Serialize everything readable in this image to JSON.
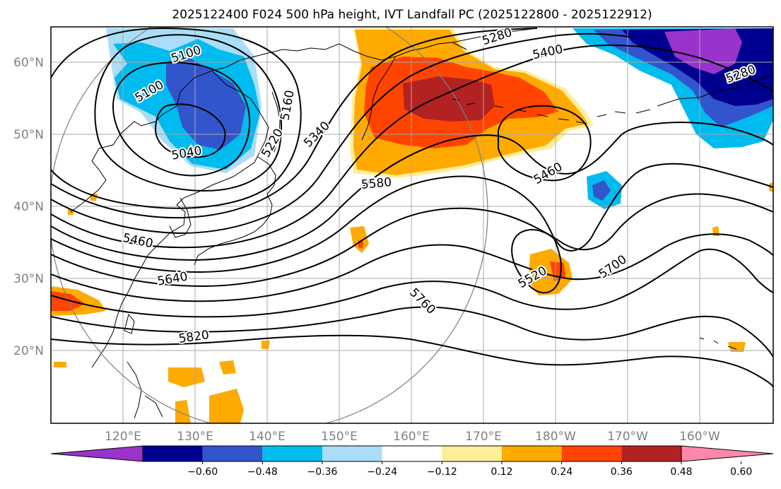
{
  "title": "2025122400 F024 500 hPa height, IVT Landfall PC (2025122800 - 2025122912)",
  "map": {
    "lat_labels": [
      "60°N",
      "50°N",
      "40°N",
      "30°N",
      "20°N"
    ],
    "lon_labels": [
      "120°E",
      "130°E",
      "140°E",
      "150°E",
      "160°E",
      "170°E",
      "180°W",
      "170°W",
      "160°W"
    ],
    "grid": true,
    "gridline_color": "#a0a0a0",
    "contour_labels": [
      "5100",
      "5100",
      "5040",
      "5220",
      "5280",
      "5160",
      "5340",
      "5280",
      "5400",
      "5580",
      "5460",
      "5460",
      "5640",
      "5820",
      "5760",
      "5520",
      "5700"
    ],
    "colors": {
      "purple": "#9933cc",
      "navy": "#000090",
      "royal_blue": "#3355cc",
      "sky_blue": "#00bbee",
      "pale_blue": "#aaddf7",
      "pale_yellow": "#ffee99",
      "orange": "#ffaa00",
      "red_orange": "#ff4400",
      "brick": "#b22222",
      "pink": "#ff88aa"
    }
  },
  "colorbar": {
    "ticks": [
      "−0.60",
      "−0.48",
      "−0.36",
      "−0.24",
      "−0.12",
      "0.12",
      "0.24",
      "0.36",
      "0.48",
      "0.60"
    ],
    "colors": [
      "#9933cc",
      "#000090",
      "#3355cc",
      "#00bbee",
      "#aaddf7",
      "#ffffff",
      "#ffee99",
      "#ffaa00",
      "#ff4400",
      "#b22222",
      "#ff88aa"
    ]
  }
}
